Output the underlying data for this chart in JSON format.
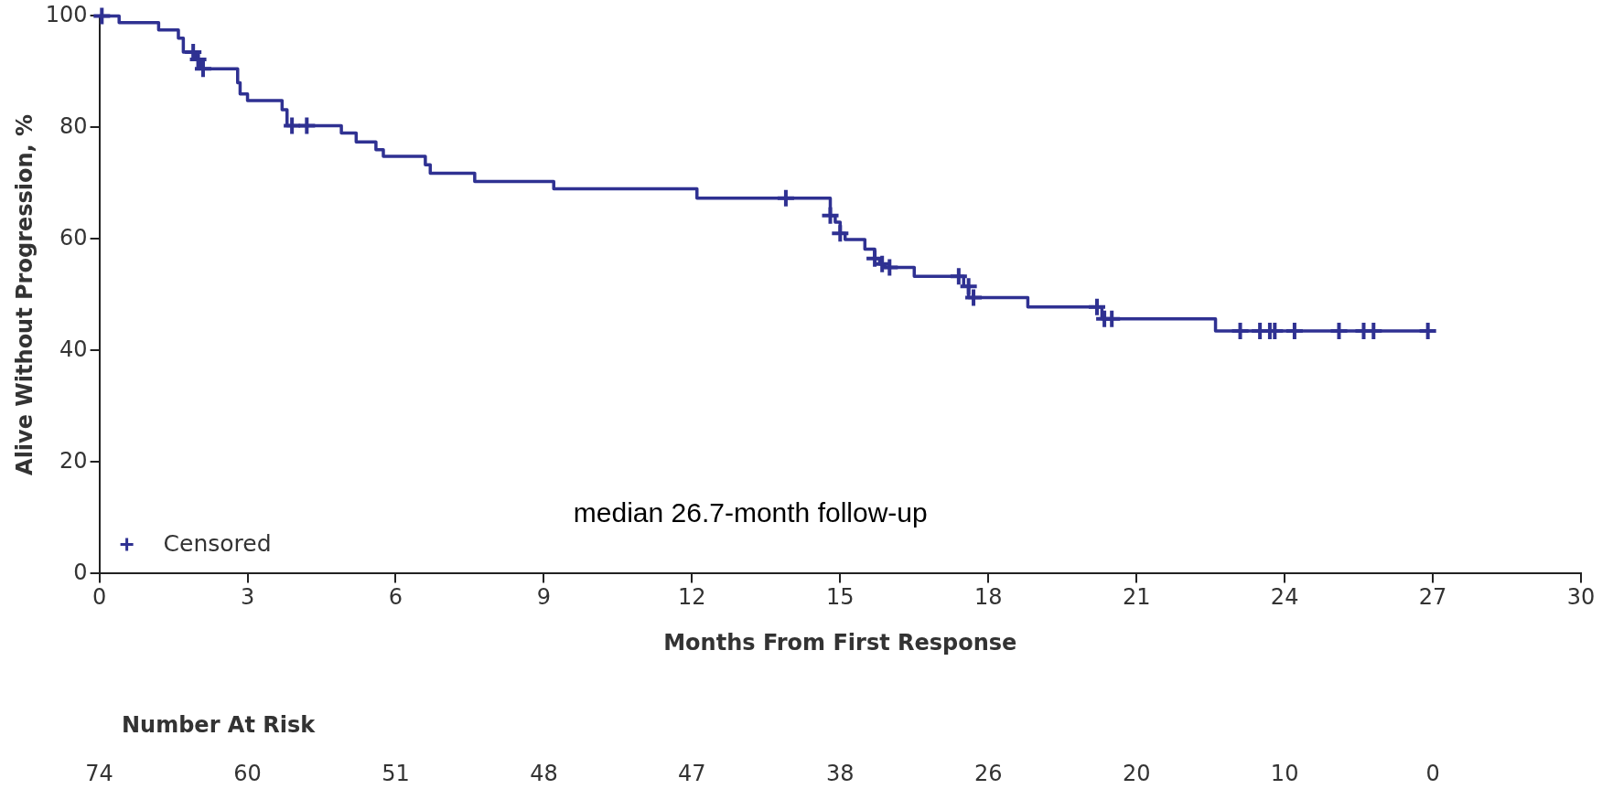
{
  "chart_data": {
    "type": "step",
    "ylabel": "Alive Without Progression, %",
    "xlabel": "Months From First Response",
    "xlim": [
      0,
      30
    ],
    "xticks": [
      0,
      3,
      6,
      9,
      12,
      15,
      18,
      21,
      24,
      27,
      30
    ],
    "ylim": [
      0,
      100
    ],
    "yticks": [
      0,
      20,
      40,
      60,
      80,
      100
    ],
    "grid": false,
    "legend": "bottom left",
    "series": [
      {
        "color": "#2f3192",
        "line_style": "solid",
        "marker": "none",
        "x": [
          0,
          0.4,
          1.2,
          1.6,
          1.7,
          1.95,
          2.05,
          2.8,
          2.85,
          3.0,
          3.7,
          3.8,
          4.9,
          5.2,
          5.6,
          5.75,
          6.6,
          6.7,
          7.6,
          9.2,
          12.1,
          14.8,
          14.9,
          15.0,
          15.1,
          15.5,
          15.7,
          15.8,
          15.9,
          16.5,
          17.5,
          17.6,
          18.8,
          20.3,
          22.6,
          26.9
        ],
        "values": [
          100,
          98.8,
          97.5,
          96,
          93.5,
          92.2,
          90.5,
          88,
          86,
          84.8,
          83.2,
          80.3,
          79,
          77.4,
          76,
          74.8,
          73.3,
          71.8,
          70.3,
          69,
          67.3,
          64.2,
          63,
          61,
          59.9,
          58.2,
          56.5,
          55.5,
          54.9,
          53.3,
          51.5,
          49.5,
          47.8,
          45.7,
          43.5,
          43.5
        ]
      },
      {
        "type": "scatter",
        "name": "Censored",
        "color": "#2f3192",
        "marker": "cross",
        "x": [
          0.05,
          1.9,
          2.0,
          2.1,
          3.9,
          4.2,
          13.9,
          14.8,
          15.0,
          15.7,
          15.85,
          16.0,
          17.4,
          17.6,
          17.7,
          20.2,
          20.35,
          20.5,
          23.1,
          23.5,
          23.7,
          23.8,
          24.2,
          25.1,
          25.6,
          25.8,
          26.9
        ],
        "values": [
          100,
          93.5,
          92.2,
          90.5,
          80.3,
          80.3,
          67.3,
          64.2,
          61,
          56.5,
          55.5,
          54.9,
          53.3,
          51.5,
          49.5,
          47.8,
          45.7,
          45.7,
          43.5,
          43.5,
          43.5,
          43.5,
          43.5,
          43.5,
          43.5,
          43.5,
          43.5
        ]
      }
    ],
    "annotations": [
      "median 26.7-month follow-up",
      "Number At Risk",
      "74",
      "60",
      "51",
      "48",
      "47",
      "38",
      "26",
      "20",
      "10",
      "0"
    ]
  }
}
